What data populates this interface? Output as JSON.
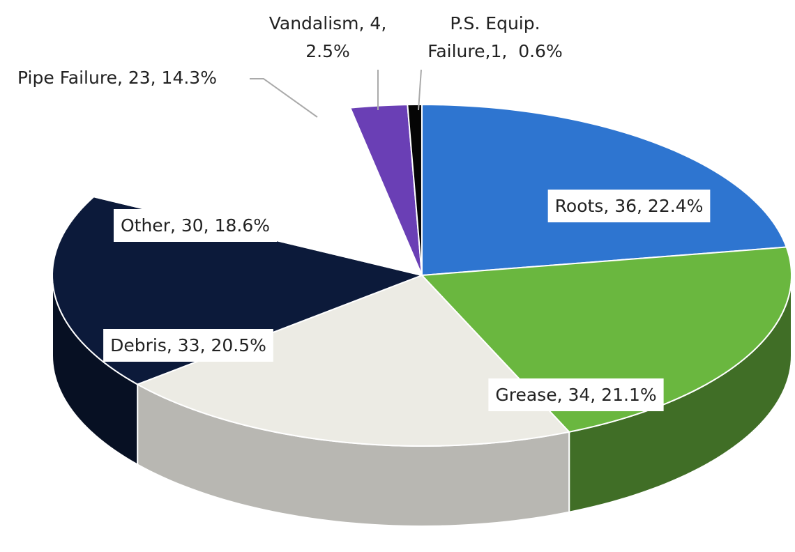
{
  "chart_data": {
    "type": "pie3d",
    "values": [
      36,
      34,
      33,
      30,
      23,
      4,
      1
    ],
    "value_labels": [
      [
        "Roots, 36, 22.4%"
      ],
      [
        "Grease, 34, 21.1%"
      ],
      [
        "Debris, 33, 20.5%"
      ],
      [
        "Other, 30, 18.6%"
      ],
      [
        "Pipe Failure, 23, 14.3%"
      ],
      [
        "Vandalism, 4,",
        "2.5%"
      ],
      [
        "P.S. Equip.",
        "Failure,1,  0.6%"
      ]
    ],
    "colors": [
      "#2e75d0",
      "#6ab73f",
      "#ecebe4",
      "#0c1a3a",
      "#ffffff",
      "#6a3fb5",
      "#050505"
    ]
  }
}
